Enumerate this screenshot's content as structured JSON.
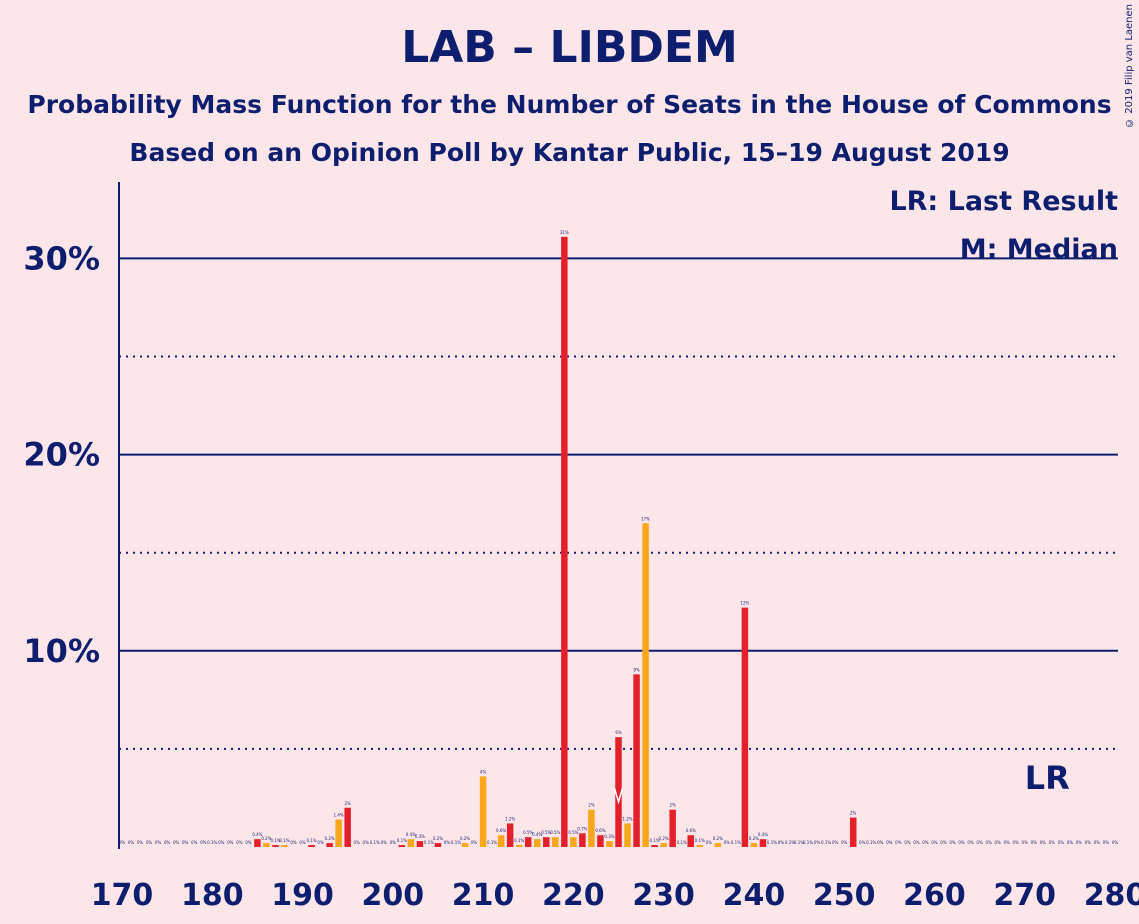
{
  "title": "LAB – LIBDEM",
  "subtitle1": "Probability Mass Function for the Number of Seats in the House of Commons",
  "subtitle2": "Based on an Opinion Poll by Kantar Public, 15–19 August 2019",
  "copyright": "© 2019 Filip van Laenen",
  "legend": {
    "lr": "LR: Last Result",
    "m": "M: Median",
    "lr_marker": "LR"
  },
  "colors": {
    "background": "#FDE6E9",
    "text": "#0E1E6E",
    "lab": "#E4212A",
    "libdem": "#FAA61A"
  },
  "chart_data": {
    "type": "bar",
    "title": "LAB – LIBDEM",
    "xlim": [
      170,
      280
    ],
    "ylim": [
      0,
      34
    ],
    "ylabel": "",
    "xlabel": "",
    "y_ticks": [
      "10%",
      "20%",
      "30%"
    ],
    "x_ticks": [
      "170",
      "180",
      "190",
      "200",
      "210",
      "220",
      "230",
      "240",
      "250",
      "260",
      "270",
      "280"
    ],
    "last_result_seat": 272,
    "median_seat": 224,
    "bars": [
      {
        "x": 170,
        "v": 0,
        "label": "0%"
      },
      {
        "x": 171,
        "v": 0,
        "label": "0%"
      },
      {
        "x": 172,
        "v": 0,
        "label": "0%"
      },
      {
        "x": 173,
        "v": 0,
        "label": "0%"
      },
      {
        "x": 174,
        "v": 0,
        "label": "0%"
      },
      {
        "x": 175,
        "v": 0,
        "label": "0%"
      },
      {
        "x": 176,
        "v": 0,
        "label": "0%"
      },
      {
        "x": 177,
        "v": 0,
        "label": "0%"
      },
      {
        "x": 178,
        "v": 0,
        "label": "0%"
      },
      {
        "x": 179,
        "v": 0,
        "label": "0%"
      },
      {
        "x": 180,
        "v": 0,
        "label": "0.1%"
      },
      {
        "x": 181,
        "v": 0,
        "label": "0%"
      },
      {
        "x": 182,
        "v": 0,
        "label": "0%"
      },
      {
        "x": 183,
        "v": 0,
        "label": "0%"
      },
      {
        "x": 184,
        "v": 0,
        "label": "0%"
      },
      {
        "x": 185,
        "v": 0.4,
        "label": "0.4%"
      },
      {
        "x": 186,
        "v": 0.2,
        "label": "0.2%"
      },
      {
        "x": 187,
        "v": 0.1,
        "label": "0.1%"
      },
      {
        "x": 188,
        "v": 0.1,
        "label": "0.1%"
      },
      {
        "x": 189,
        "v": 0,
        "label": "0%"
      },
      {
        "x": 190,
        "v": 0,
        "label": "0%"
      },
      {
        "x": 191,
        "v": 0.1,
        "label": "0.1%"
      },
      {
        "x": 192,
        "v": 0,
        "label": "0%"
      },
      {
        "x": 193,
        "v": 0.2,
        "label": "0.2%"
      },
      {
        "x": 194,
        "v": 1.4,
        "label": "1.4%"
      },
      {
        "x": 195,
        "v": 2.0,
        "label": "2%"
      },
      {
        "x": 196,
        "v": 0,
        "label": "0%"
      },
      {
        "x": 197,
        "v": 0,
        "label": "0%"
      },
      {
        "x": 198,
        "v": 0,
        "label": "0.1%"
      },
      {
        "x": 199,
        "v": 0,
        "label": "0%"
      },
      {
        "x": 200,
        "v": 0,
        "label": "0%"
      },
      {
        "x": 201,
        "v": 0.1,
        "label": "0.1%"
      },
      {
        "x": 202,
        "v": 0.4,
        "label": "0.4%"
      },
      {
        "x": 203,
        "v": 0.3,
        "label": "0.3%"
      },
      {
        "x": 204,
        "v": 0,
        "label": "0.1%"
      },
      {
        "x": 205,
        "v": 0.2,
        "label": "0.2%"
      },
      {
        "x": 206,
        "v": 0,
        "label": "0%"
      },
      {
        "x": 207,
        "v": 0,
        "label": "0.1%"
      },
      {
        "x": 208,
        "v": 0.2,
        "label": "0.2%"
      },
      {
        "x": 209,
        "v": 0,
        "label": "0%"
      },
      {
        "x": 210,
        "v": 3.6,
        "label": "4%"
      },
      {
        "x": 211,
        "v": 0,
        "label": "0.1%"
      },
      {
        "x": 212,
        "v": 0.6,
        "label": "0.6%"
      },
      {
        "x": 213,
        "v": 1.2,
        "label": "1.2%"
      },
      {
        "x": 214,
        "v": 0.1,
        "label": "0.1%"
      },
      {
        "x": 215,
        "v": 0.5,
        "label": "0.5%"
      },
      {
        "x": 216,
        "v": 0.4,
        "label": "0.4%"
      },
      {
        "x": 217,
        "v": 0.5,
        "label": "0.5%"
      },
      {
        "x": 218,
        "v": 0.5,
        "label": "0.5%"
      },
      {
        "x": 219,
        "v": 31.1,
        "label": "31%"
      },
      {
        "x": 220,
        "v": 0.5,
        "label": "0.5%"
      },
      {
        "x": 221,
        "v": 0.7,
        "label": "0.7%"
      },
      {
        "x": 222,
        "v": 1.9,
        "label": "2%"
      },
      {
        "x": 223,
        "v": 0.6,
        "label": "0.6%"
      },
      {
        "x": 224,
        "v": 0.3,
        "label": "0.3%"
      },
      {
        "x": 225,
        "v": 5.6,
        "label": "6%"
      },
      {
        "x": 226,
        "v": 1.2,
        "label": "1.2%"
      },
      {
        "x": 227,
        "v": 8.8,
        "label": "9%"
      },
      {
        "x": 228,
        "v": 16.5,
        "label": "17%"
      },
      {
        "x": 229,
        "v": 0.1,
        "label": "0.1%"
      },
      {
        "x": 230,
        "v": 0.2,
        "label": "0.2%"
      },
      {
        "x": 231,
        "v": 1.9,
        "label": "2%"
      },
      {
        "x": 232,
        "v": 0,
        "label": "0.1%"
      },
      {
        "x": 233,
        "v": 0.6,
        "label": "0.6%"
      },
      {
        "x": 234,
        "v": 0.1,
        "label": "0.1%"
      },
      {
        "x": 235,
        "v": 0,
        "label": "0%"
      },
      {
        "x": 236,
        "v": 0.2,
        "label": "0.2%"
      },
      {
        "x": 237,
        "v": 0,
        "label": "0%"
      },
      {
        "x": 238,
        "v": 0,
        "label": "0.1%"
      },
      {
        "x": 239,
        "v": 12.2,
        "label": "12%"
      },
      {
        "x": 240,
        "v": 0.2,
        "label": "0.2%"
      },
      {
        "x": 241,
        "v": 0.4,
        "label": "0.4%"
      },
      {
        "x": 242,
        "v": 0,
        "label": "0.1%"
      },
      {
        "x": 243,
        "v": 0,
        "label": "0%"
      },
      {
        "x": 244,
        "v": 0,
        "label": "0.1%"
      },
      {
        "x": 245,
        "v": 0,
        "label": "0.1%"
      },
      {
        "x": 246,
        "v": 0,
        "label": "0.1%"
      },
      {
        "x": 247,
        "v": 0,
        "label": "0%"
      },
      {
        "x": 248,
        "v": 0,
        "label": "0.1%"
      },
      {
        "x": 249,
        "v": 0,
        "label": "0%"
      },
      {
        "x": 250,
        "v": 0,
        "label": "0%"
      },
      {
        "x": 251,
        "v": 1.5,
        "label": "2%"
      },
      {
        "x": 252,
        "v": 0,
        "label": "0%"
      },
      {
        "x": 253,
        "v": 0,
        "label": "0.1%"
      },
      {
        "x": 254,
        "v": 0,
        "label": "0%"
      },
      {
        "x": 255,
        "v": 0,
        "label": "0%"
      },
      {
        "x": 256,
        "v": 0,
        "label": "0%"
      },
      {
        "x": 257,
        "v": 0,
        "label": "0%"
      },
      {
        "x": 258,
        "v": 0,
        "label": "0%"
      },
      {
        "x": 259,
        "v": 0,
        "label": "0%"
      },
      {
        "x": 260,
        "v": 0,
        "label": "0%"
      },
      {
        "x": 261,
        "v": 0,
        "label": "0%"
      },
      {
        "x": 262,
        "v": 0,
        "label": "0%"
      },
      {
        "x": 263,
        "v": 0,
        "label": "0%"
      },
      {
        "x": 264,
        "v": 0,
        "label": "0%"
      },
      {
        "x": 265,
        "v": 0,
        "label": "0%"
      },
      {
        "x": 266,
        "v": 0,
        "label": "0%"
      },
      {
        "x": 267,
        "v": 0,
        "label": "0%"
      },
      {
        "x": 268,
        "v": 0,
        "label": "0%"
      },
      {
        "x": 269,
        "v": 0,
        "label": "0%"
      },
      {
        "x": 270,
        "v": 0,
        "label": "0%"
      },
      {
        "x": 271,
        "v": 0,
        "label": "0%"
      },
      {
        "x": 272,
        "v": 0,
        "label": "0%"
      },
      {
        "x": 273,
        "v": 0,
        "label": "0%"
      },
      {
        "x": 274,
        "v": 0,
        "label": "0%"
      },
      {
        "x": 275,
        "v": 0,
        "label": "0%"
      },
      {
        "x": 276,
        "v": 0,
        "label": "0%"
      },
      {
        "x": 277,
        "v": 0,
        "label": "0%"
      },
      {
        "x": 278,
        "v": 0,
        "label": "0%"
      },
      {
        "x": 279,
        "v": 0,
        "label": "0%"
      },
      {
        "x": 280,
        "v": 0,
        "label": "0%"
      }
    ]
  }
}
